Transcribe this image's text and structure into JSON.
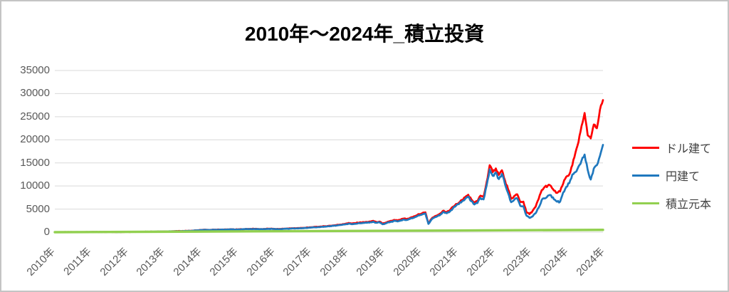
{
  "chart_data": {
    "type": "line",
    "title": "2010年〜2024年_積立投資",
    "xlabel": "",
    "ylabel": "",
    "x_unit": "monthly, 2010-01 to 2024-12",
    "x_tick_labels": [
      "2010年",
      "2011年",
      "2012年",
      "2013年",
      "2014年",
      "2015年",
      "2016年",
      "2017年",
      "2018年",
      "2019年",
      "2020年",
      "2021年",
      "2022年",
      "2023年",
      "2024年",
      "2024年"
    ],
    "y_ticks": [
      0,
      5000,
      10000,
      15000,
      20000,
      25000,
      30000,
      35000
    ],
    "ylim": [
      0,
      35000
    ],
    "grid": "horizontal",
    "legend_position": "right",
    "series": [
      {
        "name": "ドル建て",
        "color": "#FF0000",
        "values": [
          1,
          3,
          5,
          8,
          10,
          13,
          15,
          18,
          21,
          24,
          28,
          32,
          35,
          38,
          42,
          45,
          48,
          44,
          47,
          43,
          40,
          44,
          48,
          52,
          58,
          64,
          70,
          76,
          82,
          88,
          95,
          102,
          110,
          118,
          126,
          135,
          150,
          170,
          190,
          210,
          225,
          240,
          260,
          280,
          300,
          330,
          380,
          430,
          480,
          520,
          500,
          510,
          530,
          550,
          570,
          560,
          580,
          600,
          620,
          580,
          620,
          650,
          670,
          690,
          710,
          730,
          700,
          660,
          680,
          720,
          750,
          740,
          700,
          680,
          720,
          760,
          790,
          820,
          850,
          880,
          900,
          930,
          970,
          1030,
          1080,
          1120,
          1170,
          1220,
          1270,
          1330,
          1390,
          1460,
          1540,
          1630,
          1730,
          1840,
          2000,
          1850,
          1950,
          2050,
          2100,
          2150,
          2200,
          2300,
          2450,
          2200,
          2300,
          1850,
          2050,
          2300,
          2450,
          2650,
          2500,
          2750,
          2950,
          2850,
          3100,
          3300,
          3600,
          3900,
          4100,
          4300,
          1900,
          2900,
          3400,
          3700,
          4100,
          4650,
          4350,
          4750,
          5500,
          6100,
          6400,
          7000,
          7600,
          8100,
          7100,
          6400,
          6700,
          7900,
          7600,
          10800,
          14500,
          13000,
          13800,
          12400,
          13400,
          11200,
          9300,
          7200,
          7800,
          8200,
          6500,
          6600,
          4300,
          3900,
          4600,
          5500,
          7200,
          9100,
          9800,
          10100,
          10000,
          9000,
          8500,
          8800,
          10500,
          12000,
          12500,
          14500,
          17200,
          19500,
          23000,
          25800,
          21000,
          20300,
          23300,
          22500,
          26500,
          28600
        ]
      },
      {
        "name": "円建て",
        "color": "#1F78BE",
        "values": [
          1,
          3,
          5,
          8,
          10,
          12,
          14,
          17,
          20,
          23,
          27,
          31,
          34,
          37,
          40,
          43,
          46,
          42,
          45,
          41,
          38,
          42,
          46,
          50,
          56,
          61,
          67,
          73,
          79,
          84,
          91,
          98,
          105,
          113,
          121,
          129,
          144,
          163,
          182,
          201,
          215,
          230,
          249,
          268,
          287,
          316,
          364,
          412,
          460,
          498,
          480,
          490,
          508,
          527,
          546,
          537,
          556,
          575,
          594,
          556,
          594,
          623,
          642,
          661,
          680,
          699,
          671,
          632,
          651,
          690,
          718,
          709,
          665,
          646,
          684,
          722,
          750,
          779,
          807,
          836,
          855,
          883,
          921,
          978,
          1015,
          1053,
          1100,
          1147,
          1194,
          1250,
          1307,
          1372,
          1448,
          1532,
          1626,
          1730,
          1860,
          1720,
          1814,
          1907,
          1953,
          2000,
          2046,
          2139,
          2278,
          2046,
          2139,
          1720,
          1907,
          2139,
          2278,
          2464,
          2325,
          2557,
          2743,
          2650,
          2883,
          3069,
          3348,
          3627,
          3854,
          4042,
          1786,
          2726,
          3196,
          3478,
          3854,
          4371,
          4089,
          4465,
          5170,
          5734,
          6100,
          6700,
          7200,
          7700,
          6700,
          6000,
          6300,
          7400,
          7100,
          10100,
          13600,
          12200,
          12900,
          11500,
          12600,
          10400,
          8500,
          6500,
          7000,
          7300,
          5700,
          5600,
          3600,
          3100,
          3400,
          4100,
          5300,
          7000,
          7300,
          7900,
          8000,
          7100,
          6600,
          6600,
          8600,
          9800,
          10600,
          12500,
          13000,
          14200,
          15500,
          16800,
          13500,
          11400,
          13800,
          14500,
          16500,
          18900
        ]
      },
      {
        "name": "積立元本",
        "color": "#92D050",
        "linear": {
          "start": 0,
          "end": 500
        }
      }
    ],
    "colors": {
      "grid": "#D9D9D9",
      "tick_label": "#595959",
      "legend_label": "#404040",
      "title": "#000000"
    }
  }
}
